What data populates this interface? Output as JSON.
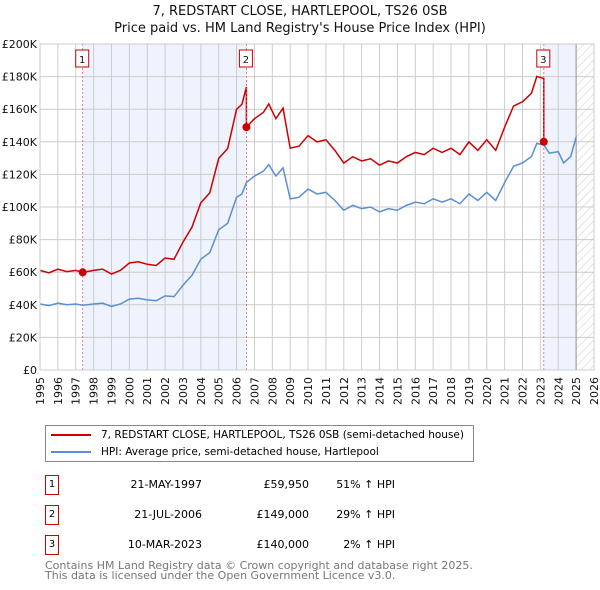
{
  "chart_data": {
    "type": "line",
    "title": "7, REDSTART CLOSE, HARTLEPOOL, TS26 0SB",
    "subtitle": "Price paid vs. HM Land Registry's House Price Index (HPI)",
    "xlim": [
      1995,
      2026
    ],
    "ylim": [
      0,
      200000
    ],
    "x_ticks": [
      "1995",
      "1996",
      "1997",
      "1998",
      "1999",
      "2000",
      "2001",
      "2002",
      "2003",
      "2004",
      "2005",
      "2006",
      "2007",
      "2008",
      "2009",
      "2010",
      "2011",
      "2012",
      "2013",
      "2014",
      "2015",
      "2016",
      "2017",
      "2018",
      "2019",
      "2020",
      "2021",
      "2022",
      "2023",
      "2024",
      "2025",
      "2026"
    ],
    "y_ticks": [
      {
        "v": 0,
        "label": "£0"
      },
      {
        "v": 20000,
        "label": "£20K"
      },
      {
        "v": 40000,
        "label": "£40K"
      },
      {
        "v": 60000,
        "label": "£60K"
      },
      {
        "v": 80000,
        "label": "£80K"
      },
      {
        "v": 100000,
        "label": "£100K"
      },
      {
        "v": 120000,
        "label": "£120K"
      },
      {
        "v": 140000,
        "label": "£140K"
      },
      {
        "v": 160000,
        "label": "£160K"
      },
      {
        "v": 180000,
        "label": "£180K"
      },
      {
        "v": 200000,
        "label": "£200K"
      }
    ],
    "grid": true,
    "legend_position": "below",
    "series": [
      {
        "name": "7, REDSTART CLOSE, HARTLEPOOL, TS26 0SB (semi-detached house)",
        "color": "#cc0000"
      },
      {
        "name": "HPI: Average price, semi-detached house, Hartlepool",
        "color": "#5b8fd4",
        "x": [
          1995,
          1995.5,
          1996,
          1996.5,
          1997,
          1997.4,
          1998,
          1998.5,
          1999,
          1999.5,
          2000,
          2000.5,
          2001,
          2001.5,
          2002,
          2002.5,
          2003,
          2003.5,
          2004,
          2004.5,
          2005,
          2005.5,
          2006,
          2006.3,
          2006.55,
          2007,
          2007.5,
          2007.8,
          2008.2,
          2008.6,
          2009,
          2009.5,
          2010,
          2010.5,
          2011,
          2011.5,
          2012,
          2012.5,
          2013,
          2013.5,
          2014,
          2014.5,
          2015,
          2015.5,
          2016,
          2016.5,
          2017,
          2017.5,
          2018,
          2018.5,
          2019,
          2019.5,
          2020,
          2020.5,
          2021,
          2021.5,
          2022,
          2022.5,
          2022.8,
          2023.2,
          2023.5,
          2024,
          2024.3,
          2024.7,
          2025
        ],
        "y": [
          40500,
          39500,
          41000,
          40000,
          40500,
          39700,
          40500,
          41000,
          39000,
          40500,
          43500,
          44000,
          43000,
          42500,
          45500,
          45000,
          52000,
          58000,
          68000,
          72000,
          86000,
          90000,
          106000,
          108000,
          115000,
          119000,
          122000,
          126000,
          119000,
          124000,
          105000,
          106000,
          111000,
          108000,
          109000,
          104000,
          98000,
          101000,
          99000,
          100000,
          97000,
          99000,
          98000,
          101000,
          103000,
          102000,
          105000,
          103000,
          105000,
          102000,
          108000,
          104000,
          109000,
          104000,
          115000,
          125000,
          127000,
          131000,
          139000,
          138000,
          133000,
          134000,
          127000,
          131000,
          143000
        ]
      }
    ],
    "sales": [
      {
        "num": "1",
        "date": "21-MAY-1997",
        "price": "£59,950",
        "hpi": "51% ↑ HPI",
        "x": 1997.39,
        "y": 59950
      },
      {
        "num": "2",
        "date": "21-JUL-2006",
        "price": "£149,000",
        "hpi": "29% ↑ HPI",
        "x": 2006.55,
        "y": 149000
      },
      {
        "num": "3",
        "date": "10-MAR-2023",
        "price": "£140,000",
        "hpi": "2% ↑ HPI",
        "x": 2023.19,
        "y": 140000
      }
    ],
    "data_end": 2025.0
  },
  "footer": {
    "line1": "Contains HM Land Registry data © Crown copyright and database right 2025.",
    "line2": "This data is licensed under the Open Government Licence v3.0."
  }
}
